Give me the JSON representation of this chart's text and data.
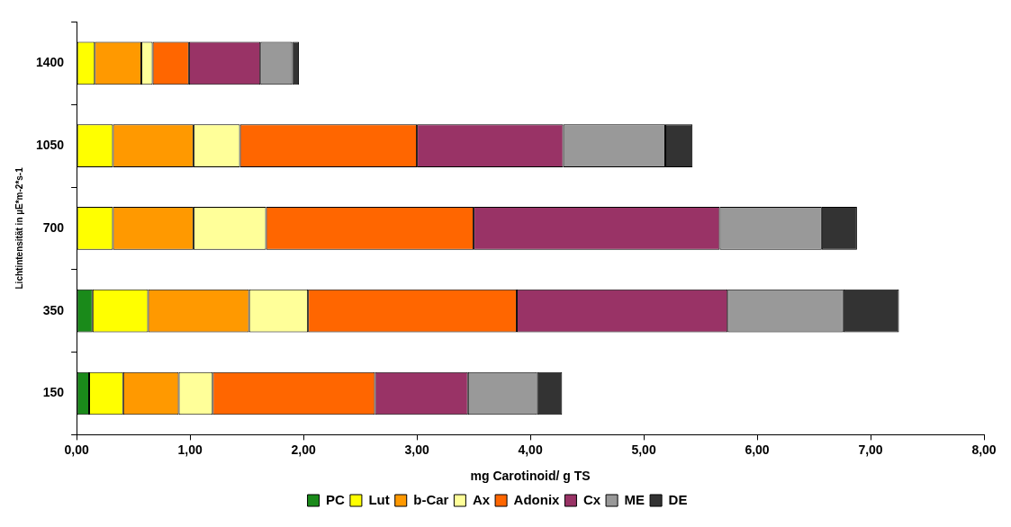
{
  "chart_data": {
    "type": "bar",
    "orientation": "horizontal",
    "stacked": true,
    "xlabel": "mg Carotinoid/ g TS",
    "ylabel": "Lichtintensität in µE*m-2*s-1",
    "categories": [
      "1400",
      "1050",
      "700",
      "350",
      "150"
    ],
    "series": [
      {
        "name": "PC",
        "color": "#1a8a1a",
        "values": [
          0,
          0,
          0,
          0.14,
          0.11
        ]
      },
      {
        "name": "Lut",
        "color": "#ffff00",
        "values": [
          0.16,
          0.32,
          0.32,
          0.49,
          0.3
        ]
      },
      {
        "name": "b-Car",
        "color": "#ff9900",
        "values": [
          0.41,
          0.71,
          0.71,
          0.89,
          0.49
        ]
      },
      {
        "name": "Ax",
        "color": "#ffff99",
        "values": [
          0.1,
          0.41,
          0.64,
          0.52,
          0.3
        ]
      },
      {
        "name": "Adonix",
        "color": "#ff6600",
        "values": [
          0.32,
          1.56,
          1.83,
          1.84,
          1.43
        ]
      },
      {
        "name": "Cx",
        "color": "#993366",
        "values": [
          0.63,
          1.29,
          2.17,
          1.86,
          0.82
        ]
      },
      {
        "name": "ME",
        "color": "#999999",
        "values": [
          0.28,
          0.9,
          0.9,
          1.02,
          0.61
        ]
      },
      {
        "name": "DE",
        "color": "#333333",
        "values": [
          0.06,
          0.24,
          0.31,
          0.49,
          0.22
        ]
      }
    ],
    "xlim": [
      0,
      8
    ],
    "xticks": [
      {
        "value": 0,
        "label": "0,00"
      },
      {
        "value": 1,
        "label": "1,00"
      },
      {
        "value": 2,
        "label": "2,00"
      },
      {
        "value": 3,
        "label": "3,00"
      },
      {
        "value": 4,
        "label": "4,00"
      },
      {
        "value": 5,
        "label": "5,00"
      },
      {
        "value": 6,
        "label": "6,00"
      },
      {
        "value": 7,
        "label": "7,00"
      },
      {
        "value": 8,
        "label": "8,00"
      }
    ],
    "grid": false,
    "legend": "bottom"
  }
}
